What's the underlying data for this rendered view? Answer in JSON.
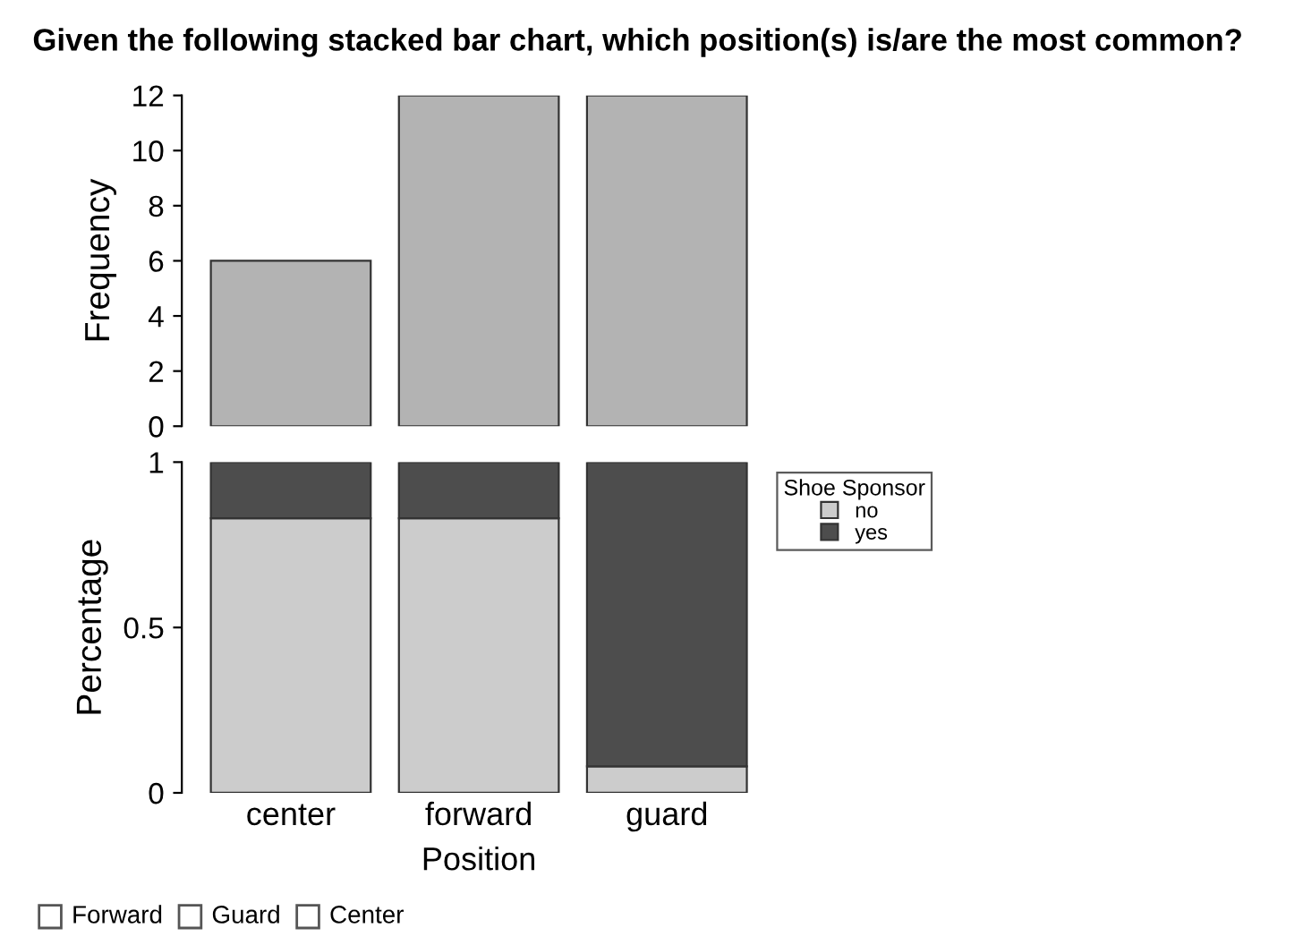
{
  "chart_data": [
    {
      "type": "bar",
      "title": "Given the following stacked bar chart, which position(s) is/are the most common?",
      "ylabel": "Frequency",
      "categories": [
        null,
        null,
        null
      ],
      "values": [
        6,
        12,
        12
      ],
      "color": "#b3b3b3",
      "ylim": [
        0,
        12
      ],
      "yticks": [
        0,
        2,
        4,
        6,
        8,
        10,
        12
      ],
      "tick_labels": "y"
    },
    {
      "type": "bar",
      "stacked": true,
      "xlabel": "Position",
      "ylabel": "Percentage",
      "legend_title": "Shoe Sponsor",
      "legend": "right",
      "categories": [
        "center",
        "forward",
        "guard"
      ],
      "series": [
        {
          "name": "no",
          "color": "#cccccc",
          "values": [
            0.83,
            0.83,
            0.08
          ]
        },
        {
          "name": "yes",
          "color": "#4d4d4d",
          "values": [
            0.17,
            0.17,
            0.92
          ]
        }
      ],
      "ylim": [
        0,
        1
      ],
      "yticks": [
        0,
        0.5,
        1
      ],
      "annotations": [
        "Forward",
        "Guard",
        "Center"
      ]
    }
  ]
}
